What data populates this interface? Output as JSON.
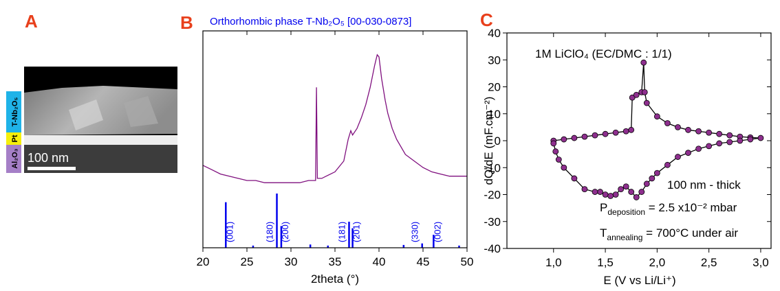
{
  "panel_a": {
    "label": "A",
    "scale_bar": "100 nm",
    "layers": [
      "T-Nb₂O₅",
      "Pt",
      "Al₂O₃"
    ]
  },
  "chart_data": [
    {
      "type": "line",
      "panel_label": "B",
      "title": "Orthorhombic phase T-Nb₂O₅ [00-030-0873]",
      "x_label": "2theta (°)",
      "xlim": [
        20,
        50
      ],
      "xticks": [
        20,
        25,
        30,
        35,
        40,
        45,
        50
      ],
      "ylim": [
        0,
        100
      ],
      "series": [
        {
          "color": "#7f0f7e",
          "x": [
            20,
            21,
            22,
            23,
            24,
            25,
            26,
            27,
            28,
            29,
            30,
            31,
            32,
            32.8,
            32.9,
            33.0,
            33.5,
            34,
            35,
            36,
            36.5,
            36.8,
            37.0,
            37.5,
            38,
            38.5,
            39,
            39.5,
            39.8,
            40,
            40.3,
            40.7,
            41,
            41.5,
            42,
            43,
            44,
            45,
            46,
            47,
            48,
            49,
            50
          ],
          "values": [
            38,
            36,
            34,
            33,
            32,
            31,
            31,
            30,
            30,
            30,
            30,
            30,
            31,
            31,
            74,
            32,
            32,
            33,
            35,
            40,
            50,
            54,
            52,
            55,
            60,
            66,
            74,
            84,
            89,
            88,
            78,
            68,
            62,
            55,
            50,
            43,
            40,
            37,
            35,
            34,
            33,
            33,
            33
          ]
        }
      ],
      "reference": {
        "color": "#0000ee",
        "x": [
          22.6,
          25.7,
          28.4,
          28.9,
          32.2,
          34.2,
          36.6,
          37.0,
          42.8,
          44.9,
          46.2,
          49.1
        ],
        "values": [
          21,
          1,
          25,
          10,
          1.5,
          1,
          12,
          9,
          1.3,
          2,
          6,
          1
        ],
        "labels": [
          "(001)",
          null,
          "(180)",
          "(200)",
          null,
          null,
          "(181)",
          "(201)",
          null,
          "(330)",
          "(002)",
          null
        ]
      }
    },
    {
      "type": "line",
      "panel_label": "C",
      "x_label": "E (V vs Li/Li⁺)",
      "y_label": "dQ/dE (mF.cm⁻²)",
      "xlim": [
        0.55,
        3.1
      ],
      "xticks": [
        {
          "value": 1.0,
          "label": "1,0"
        },
        {
          "value": 1.5,
          "label": "1,5"
        },
        {
          "value": 2.0,
          "label": "2,0"
        },
        {
          "value": 2.5,
          "label": "2,5"
        },
        {
          "value": 3.0,
          "label": "3,0"
        }
      ],
      "ylim": [
        -40,
        40
      ],
      "yticks": [
        -40,
        -30,
        -20,
        -10,
        0,
        10,
        20,
        30,
        40
      ],
      "markers": true,
      "series": [
        {
          "color": "#8e2f8e",
          "line_color": "#000000",
          "x": [
            1.0,
            1.1,
            1.2,
            1.3,
            1.4,
            1.5,
            1.6,
            1.7,
            1.75,
            1.76,
            1.8,
            1.85,
            1.87,
            1.88,
            1.9,
            2.0,
            2.1,
            2.2,
            2.3,
            2.4,
            2.5,
            2.6,
            2.7,
            2.8,
            2.9,
            3.0,
            2.9,
            2.8,
            2.7,
            2.6,
            2.5,
            2.4,
            2.3,
            2.2,
            2.1,
            2.0,
            1.95,
            1.9,
            1.85,
            1.8,
            1.75,
            1.7,
            1.65,
            1.6,
            1.55,
            1.5,
            1.45,
            1.4,
            1.3,
            1.2,
            1.1,
            1.05,
            1.02,
            1.0
          ],
          "values": [
            0,
            0.5,
            1,
            1.5,
            2,
            2.5,
            3,
            3.5,
            4,
            16,
            17,
            18,
            29,
            18,
            14,
            9,
            6.5,
            5,
            4,
            3.5,
            3,
            2.5,
            2,
            1.5,
            1.2,
            1,
            0.5,
            0,
            -0.5,
            -1,
            -2,
            -3,
            -4.5,
            -6,
            -9,
            -12,
            -14,
            -16,
            -19,
            -21,
            -19,
            -17,
            -18,
            -20,
            -20.5,
            -20,
            -19,
            -19,
            -18,
            -14,
            -10,
            -7,
            -4,
            -1
          ]
        }
      ],
      "annotations": {
        "electrolyte": "1M LiClO₄ (EC/DMC : 1/1)",
        "thickness": "100 nm - thick",
        "deposition": {
          "symbol": "P",
          "subscript": "deposition",
          "rest": " = 2.5 x10⁻² mbar"
        },
        "annealing": {
          "symbol": "T",
          "subscript": "annealing",
          "rest": " = 700°C under air"
        }
      }
    }
  ]
}
